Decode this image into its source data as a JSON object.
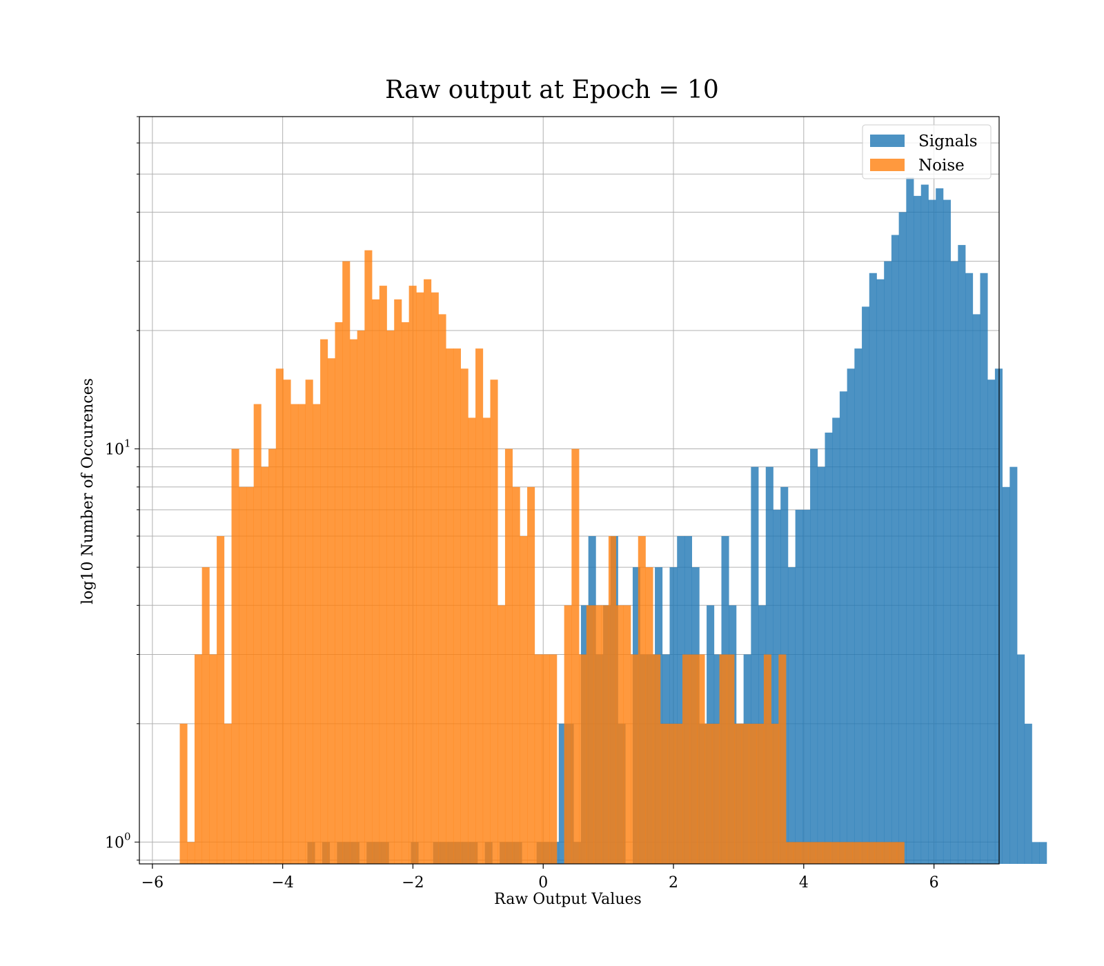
{
  "chart_data": {
    "type": "histogram",
    "title": "Raw output at Epoch = 10",
    "xlabel": "Raw Output Values",
    "ylabel": "log10 Number of Occurences",
    "yscale": "log",
    "xlim": [
      -6.2,
      7.0
    ],
    "ylim": [
      0.88,
      70
    ],
    "x_ticks": [
      -6,
      -4,
      -2,
      0,
      2,
      4,
      6
    ],
    "x_tick_labels": [
      "−6",
      "−4",
      "−2",
      "0",
      "2",
      "4",
      "6"
    ],
    "y_ticks": [
      1,
      10
    ],
    "y_tick_labels": [
      {
        "base": "10",
        "exp": "0"
      },
      {
        "base": "10",
        "exp": "1"
      }
    ],
    "grid": true,
    "legend_position": "top-right",
    "series": [
      {
        "name": "Signals",
        "color": "#1f77b4",
        "opacity": 0.8,
        "bin_start": -3.62,
        "bin_width": 0.1135,
        "counts": [
          1,
          0,
          1,
          0,
          1,
          1,
          1,
          0,
          1,
          1,
          1,
          0,
          0,
          0,
          1,
          0,
          0,
          1,
          1,
          1,
          1,
          1,
          1,
          0,
          1,
          0,
          1,
          1,
          1,
          0,
          0,
          1,
          1,
          1,
          2,
          2,
          1,
          4,
          6,
          3,
          4,
          6,
          2,
          0,
          5,
          3,
          3,
          5,
          3,
          5,
          6,
          6,
          5,
          2,
          4,
          3,
          6,
          4,
          2,
          3,
          9,
          4,
          9,
          7,
          8,
          5,
          7,
          7,
          10,
          9,
          11,
          12,
          14,
          16,
          18,
          23,
          28,
          27,
          30,
          35,
          40,
          49,
          44,
          47,
          43,
          46,
          43,
          30,
          33,
          28,
          22,
          28,
          15,
          16,
          8,
          9,
          3,
          2,
          1,
          1
        ]
      },
      {
        "name": "Noise",
        "color": "#ff7f0e",
        "opacity": 0.8,
        "bin_start": -5.58,
        "bin_width": 0.1135,
        "counts": [
          2,
          1,
          3,
          5,
          3,
          6,
          2,
          10,
          8,
          8,
          13,
          9,
          10,
          16,
          15,
          13,
          13,
          15,
          13,
          19,
          17,
          21,
          30,
          19,
          20,
          32,
          24,
          26,
          20,
          24,
          21,
          26,
          25,
          27,
          25,
          22,
          18,
          18,
          16,
          12,
          18,
          12,
          15,
          4,
          10,
          8,
          6,
          8,
          3,
          3,
          3,
          0,
          4,
          10,
          3,
          4,
          4,
          4,
          6,
          4,
          4,
          3,
          6,
          5,
          3,
          2,
          2,
          2,
          3,
          3,
          3,
          2,
          2,
          3,
          3,
          2,
          2,
          2,
          2,
          3,
          2,
          3,
          1,
          1,
          1,
          1,
          1,
          1,
          1,
          1,
          1,
          1,
          1,
          1,
          1,
          1,
          1,
          1
        ]
      }
    ]
  }
}
